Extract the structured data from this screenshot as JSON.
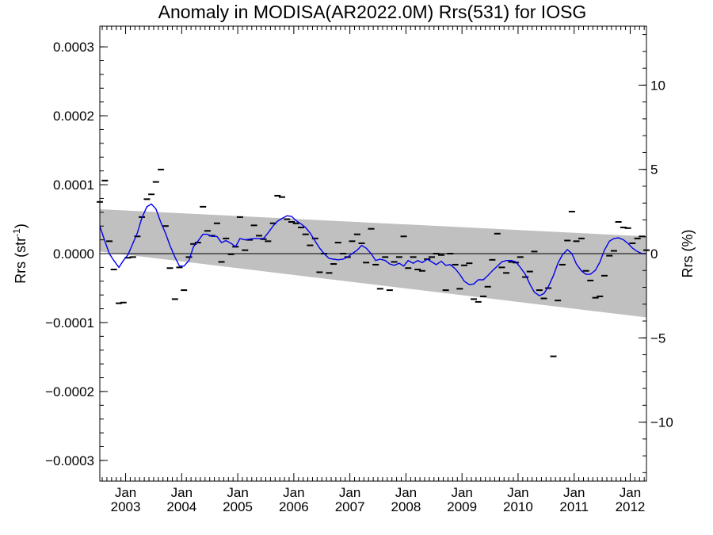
{
  "chart_data": {
    "type": "scatter",
    "title": "Anomaly in MODISA(AR2022.0M) Rrs(531) for IOSG",
    "ylabel_left": "Rrs (str",
    "ylabel_left_sup": "-1",
    "ylabel_left_end": ")",
    "ylabel_right": "Rrs (%)",
    "x_range": [
      2002.54,
      2012.29
    ],
    "ylim_left": [
      -0.00033,
      0.00033
    ],
    "ylim_right": [
      -13.5,
      13.5
    ],
    "y_ticks_left": [
      {
        "value": 0.0003,
        "label": "0.0003"
      },
      {
        "value": 0.0002,
        "label": "0.0002"
      },
      {
        "value": 0.0001,
        "label": "0.0001"
      },
      {
        "value": 0.0,
        "label": "0.0000"
      },
      {
        "value": -0.0001,
        "label": "−0.0001"
      },
      {
        "value": -0.0002,
        "label": "−0.0002"
      },
      {
        "value": -0.0003,
        "label": "−0.0003"
      }
    ],
    "y_ticks_right": [
      {
        "value": 10,
        "label": "10"
      },
      {
        "value": 5,
        "label": "5"
      },
      {
        "value": 0,
        "label": "0"
      },
      {
        "value": -5,
        "label": "−5"
      },
      {
        "value": -10,
        "label": "−10"
      }
    ],
    "x_ticks": [
      {
        "value": 2003.0,
        "month": "Jan",
        "year": "2003"
      },
      {
        "value": 2004.0,
        "month": "Jan",
        "year": "2004"
      },
      {
        "value": 2005.0,
        "month": "Jan",
        "year": "2005"
      },
      {
        "value": 2006.0,
        "month": "Jan",
        "year": "2006"
      },
      {
        "value": 2007.0,
        "month": "Jan",
        "year": "2007"
      },
      {
        "value": 2008.0,
        "month": "Jan",
        "year": "2008"
      },
      {
        "value": 2009.0,
        "month": "Jan",
        "year": "2009"
      },
      {
        "value": 2010.0,
        "month": "Jan",
        "year": "2010"
      },
      {
        "value": 2011.0,
        "month": "Jan",
        "year": "2011"
      },
      {
        "value": 2012.0,
        "month": "Jan",
        "year": "2012"
      }
    ],
    "zero_line": 0,
    "band": {
      "upper_start": 6.45e-05,
      "upper_end": 2.5e-05,
      "lower_start": 3e-06,
      "lower_end": -9.25e-05,
      "color": "#c0c0c0"
    },
    "series": [
      {
        "type": "monthly_anomaly_markers",
        "color": "#000000",
        "points": [
          [
            2002.54,
            7.5e-05
          ],
          [
            2002.63,
            0.000106
          ],
          [
            2002.71,
            1.8e-05
          ],
          [
            2002.79,
            -2.3e-05
          ],
          [
            2002.88,
            -7.2e-05
          ],
          [
            2002.96,
            -7.1e-05
          ],
          [
            2003.04,
            -6e-06
          ],
          [
            2003.13,
            -5e-06
          ],
          [
            2003.21,
            2.5e-05
          ],
          [
            2003.29,
            5.3e-05
          ],
          [
            2003.38,
            7.9e-05
          ],
          [
            2003.46,
            8.6e-05
          ],
          [
            2003.54,
            0.000104
          ],
          [
            2003.63,
            0.000122
          ],
          [
            2003.71,
            4e-05
          ],
          [
            2003.79,
            -2.1e-05
          ],
          [
            2003.88,
            -6.6e-05
          ],
          [
            2003.96,
            -2e-05
          ],
          [
            2004.04,
            -5.3e-05
          ],
          [
            2004.13,
            -5e-06
          ],
          [
            2004.21,
            1.4e-05
          ],
          [
            2004.29,
            1.6e-05
          ],
          [
            2004.38,
            6.8e-05
          ],
          [
            2004.46,
            3.3e-05
          ],
          [
            2004.54,
            2.6e-05
          ],
          [
            2004.63,
            4.4e-05
          ],
          [
            2004.71,
            -1.2e-05
          ],
          [
            2004.79,
            2.2e-05
          ],
          [
            2004.88,
            -1e-06
          ],
          [
            2004.96,
            1e-05
          ],
          [
            2005.04,
            5.3e-05
          ],
          [
            2005.13,
            5e-06
          ],
          [
            2005.21,
            2e-05
          ],
          [
            2005.29,
            4.1e-05
          ],
          [
            2005.38,
            2.6e-05
          ],
          [
            2005.46,
            2.1e-05
          ],
          [
            2005.54,
            1.8e-05
          ],
          [
            2005.63,
            4.4e-05
          ],
          [
            2005.71,
            8.4e-05
          ],
          [
            2005.79,
            8.2e-05
          ],
          [
            2005.88,
            5e-05
          ],
          [
            2005.96,
            4.6e-05
          ],
          [
            2006.04,
            4.4e-05
          ],
          [
            2006.13,
            3.8e-05
          ],
          [
            2006.21,
            2.8e-05
          ],
          [
            2006.29,
            1.2e-05
          ],
          [
            2006.38,
            2.2e-05
          ],
          [
            2006.46,
            -2.7e-05
          ],
          [
            2006.54,
            0.0
          ],
          [
            2006.63,
            -2.8e-05
          ],
          [
            2006.71,
            -1.5e-05
          ],
          [
            2006.79,
            1.6e-05
          ],
          [
            2006.88,
            0.0
          ],
          [
            2006.96,
            -5e-06
          ],
          [
            2007.04,
            1.8e-05
          ],
          [
            2007.13,
            2.8e-05
          ],
          [
            2007.21,
            1.5e-05
          ],
          [
            2007.29,
            -1.3e-05
          ],
          [
            2007.38,
            3.6e-05
          ],
          [
            2007.46,
            -1.6e-05
          ],
          [
            2007.54,
            -5.1e-05
          ],
          [
            2007.63,
            -5e-06
          ],
          [
            2007.71,
            -5.3e-05
          ],
          [
            2007.79,
            -1.2e-05
          ],
          [
            2007.88,
            -5e-06
          ],
          [
            2007.96,
            2.5e-05
          ],
          [
            2008.04,
            -2.1e-05
          ],
          [
            2008.13,
            -5e-06
          ],
          [
            2008.21,
            -2.3e-05
          ],
          [
            2008.29,
            -2.5e-05
          ],
          [
            2008.38,
            -8e-06
          ],
          [
            2008.46,
            -5e-06
          ],
          [
            2008.54,
            0.0
          ],
          [
            2008.63,
            -2e-06
          ],
          [
            2008.71,
            -5.3e-05
          ],
          [
            2008.79,
            0.0
          ],
          [
            2008.88,
            -1.6e-05
          ],
          [
            2008.96,
            -5.1e-05
          ],
          [
            2009.04,
            -1.7e-05
          ],
          [
            2009.13,
            -1.4e-05
          ],
          [
            2009.21,
            -6.6e-05
          ],
          [
            2009.29,
            -7e-05
          ],
          [
            2009.38,
            -6.2e-05
          ],
          [
            2009.46,
            -4.8e-05
          ],
          [
            2009.54,
            -9e-06
          ],
          [
            2009.63,
            2.9e-05
          ],
          [
            2009.71,
            -2e-05
          ],
          [
            2009.79,
            -2.8e-05
          ],
          [
            2009.88,
            -1.2e-05
          ],
          [
            2009.96,
            -1.3e-05
          ],
          [
            2010.04,
            -5e-06
          ],
          [
            2010.13,
            -3.4e-05
          ],
          [
            2010.21,
            -2.6e-05
          ],
          [
            2010.29,
            3e-06
          ],
          [
            2010.38,
            -5.3e-05
          ],
          [
            2010.46,
            -6.5e-05
          ],
          [
            2010.54,
            -5e-05
          ],
          [
            2010.63,
            -0.000149
          ],
          [
            2010.71,
            -6.8e-05
          ],
          [
            2010.79,
            -1.6e-05
          ],
          [
            2010.88,
            1.9e-05
          ],
          [
            2010.96,
            6.1e-05
          ],
          [
            2011.04,
            1.8e-05
          ],
          [
            2011.13,
            2.2e-05
          ],
          [
            2011.21,
            -2.5e-05
          ],
          [
            2011.29,
            -3.9e-05
          ],
          [
            2011.38,
            -6.4e-05
          ],
          [
            2011.46,
            -6.2e-05
          ],
          [
            2011.54,
            -3.2e-05
          ],
          [
            2011.63,
            -3e-06
          ],
          [
            2011.71,
            4e-06
          ],
          [
            2011.79,
            4.6e-05
          ],
          [
            2011.88,
            3.8e-05
          ],
          [
            2011.96,
            3.7e-05
          ],
          [
            2012.04,
            1.5e-05
          ],
          [
            2012.13,
            2.2e-05
          ],
          [
            2012.21,
            2.5e-05
          ],
          [
            2012.29,
            5e-06
          ]
        ]
      },
      {
        "type": "smoothed_line",
        "color": "#0000ee",
        "points": [
          [
            2002.54,
            4e-05
          ],
          [
            2002.63,
            1.8e-05
          ],
          [
            2002.71,
            0.0
          ],
          [
            2002.79,
            -1e-05
          ],
          [
            2002.88,
            -2e-05
          ],
          [
            2002.96,
            -1e-05
          ],
          [
            2003.04,
            -2e-06
          ],
          [
            2003.13,
            1.5e-05
          ],
          [
            2003.21,
            3e-05
          ],
          [
            2003.29,
            5.2e-05
          ],
          [
            2003.38,
            6.8e-05
          ],
          [
            2003.46,
            7.2e-05
          ],
          [
            2003.54,
            6.5e-05
          ],
          [
            2003.63,
            4.5e-05
          ],
          [
            2003.71,
            3e-05
          ],
          [
            2003.79,
            1.2e-05
          ],
          [
            2003.88,
            -5e-06
          ],
          [
            2003.96,
            -1.8e-05
          ],
          [
            2004.04,
            -1.8e-05
          ],
          [
            2004.13,
            -1e-05
          ],
          [
            2004.21,
            1e-05
          ],
          [
            2004.29,
            1.8e-05
          ],
          [
            2004.38,
            2.8e-05
          ],
          [
            2004.46,
            2.8e-05
          ],
          [
            2004.54,
            2.5e-05
          ],
          [
            2004.63,
            2.5e-05
          ],
          [
            2004.71,
            1.6e-05
          ],
          [
            2004.79,
            1.9e-05
          ],
          [
            2004.88,
            1.5e-05
          ],
          [
            2004.96,
            1e-05
          ],
          [
            2005.04,
            2.2e-05
          ],
          [
            2005.13,
            2e-05
          ],
          [
            2005.21,
            2.1e-05
          ],
          [
            2005.29,
            2.2e-05
          ],
          [
            2005.38,
            2.2e-05
          ],
          [
            2005.46,
            2.2e-05
          ],
          [
            2005.54,
            3e-05
          ],
          [
            2005.63,
            4e-05
          ],
          [
            2005.71,
            4.7e-05
          ],
          [
            2005.79,
            5.1e-05
          ],
          [
            2005.88,
            5.5e-05
          ],
          [
            2005.96,
            5.4e-05
          ],
          [
            2006.04,
            4.8e-05
          ],
          [
            2006.13,
            4.3e-05
          ],
          [
            2006.21,
            3.8e-05
          ],
          [
            2006.29,
            3e-05
          ],
          [
            2006.38,
            1.8e-05
          ],
          [
            2006.46,
            8e-06
          ],
          [
            2006.54,
            0.0
          ],
          [
            2006.63,
            -7e-06
          ],
          [
            2006.71,
            -8e-06
          ],
          [
            2006.79,
            -9e-06
          ],
          [
            2006.88,
            -8e-06
          ],
          [
            2006.96,
            -5e-06
          ],
          [
            2007.04,
            0.0
          ],
          [
            2007.13,
            5e-06
          ],
          [
            2007.21,
            1.2e-05
          ],
          [
            2007.29,
            8e-06
          ],
          [
            2007.38,
            0.0
          ],
          [
            2007.46,
            -1e-05
          ],
          [
            2007.54,
            -8e-06
          ],
          [
            2007.63,
            -1e-05
          ],
          [
            2007.71,
            -1.5e-05
          ],
          [
            2007.79,
            -1.7e-05
          ],
          [
            2007.88,
            -1.4e-05
          ],
          [
            2007.96,
            -1.8e-05
          ],
          [
            2008.04,
            -1e-05
          ],
          [
            2008.13,
            -1.4e-05
          ],
          [
            2008.21,
            -1e-05
          ],
          [
            2008.29,
            -1.3e-05
          ],
          [
            2008.38,
            -8e-06
          ],
          [
            2008.46,
            -1.2e-05
          ],
          [
            2008.54,
            -1.6e-05
          ],
          [
            2008.63,
            -1.1e-05
          ],
          [
            2008.71,
            -1.7e-05
          ],
          [
            2008.79,
            -1.6e-05
          ],
          [
            2008.88,
            -2.2e-05
          ],
          [
            2008.96,
            -3e-05
          ],
          [
            2009.04,
            -4e-05
          ],
          [
            2009.13,
            -4.5e-05
          ],
          [
            2009.21,
            -4.4e-05
          ],
          [
            2009.29,
            -3.8e-05
          ],
          [
            2009.38,
            -3.8e-05
          ],
          [
            2009.46,
            -3.2e-05
          ],
          [
            2009.54,
            -2.5e-05
          ],
          [
            2009.63,
            -1.8e-05
          ],
          [
            2009.71,
            -1.2e-05
          ],
          [
            2009.79,
            -1e-05
          ],
          [
            2009.88,
            -1e-05
          ],
          [
            2009.96,
            -1.2e-05
          ],
          [
            2010.04,
            -2e-05
          ],
          [
            2010.13,
            -3e-05
          ],
          [
            2010.21,
            -4.4e-05
          ],
          [
            2010.29,
            -5.6e-05
          ],
          [
            2010.38,
            -6.1e-05
          ],
          [
            2010.46,
            -5.8e-05
          ],
          [
            2010.54,
            -4.8e-05
          ],
          [
            2010.63,
            -3.2e-05
          ],
          [
            2010.71,
            -1.4e-05
          ],
          [
            2010.79,
            -2e-06
          ],
          [
            2010.88,
            6e-06
          ],
          [
            2010.96,
            0.0
          ],
          [
            2011.04,
            -1.5e-05
          ],
          [
            2011.13,
            -2.5e-05
          ],
          [
            2011.21,
            -3e-05
          ],
          [
            2011.29,
            -3e-05
          ],
          [
            2011.38,
            -2.4e-05
          ],
          [
            2011.46,
            -1.2e-05
          ],
          [
            2011.54,
            5e-06
          ],
          [
            2011.63,
            1.8e-05
          ],
          [
            2011.71,
            2.2e-05
          ],
          [
            2011.79,
            2.3e-05
          ],
          [
            2011.88,
            2e-05
          ],
          [
            2011.96,
            1.5e-05
          ],
          [
            2012.04,
            8e-06
          ],
          [
            2012.13,
            3e-06
          ],
          [
            2012.21,
            0.0
          ],
          [
            2012.29,
            0.0
          ]
        ]
      }
    ]
  }
}
